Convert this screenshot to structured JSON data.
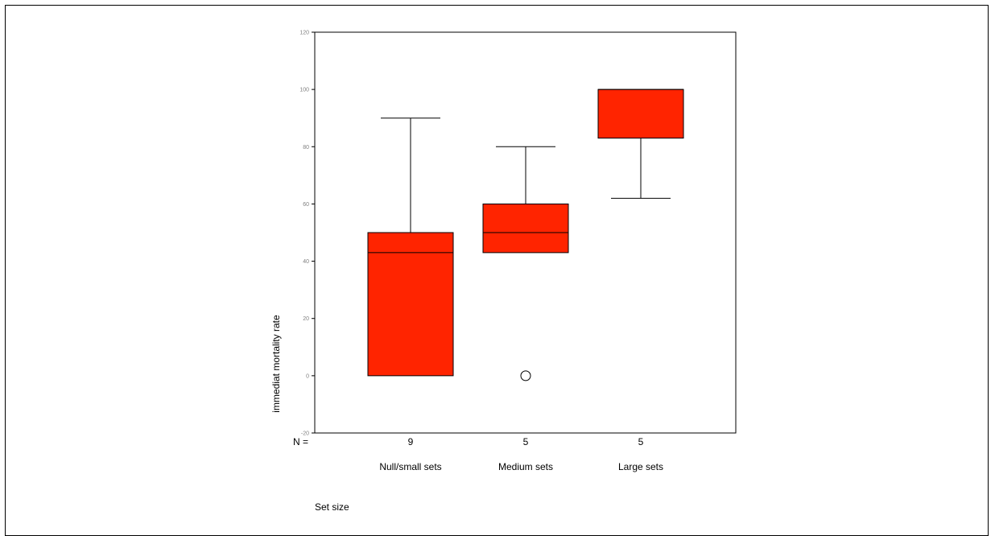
{
  "chart_data": {
    "type": "boxplot",
    "title": "",
    "xlabel": "Set size",
    "ylabel": "immediat mortality rate",
    "ylim": [
      -20,
      120
    ],
    "yticks": [
      -20,
      0,
      20,
      40,
      60,
      80,
      100,
      120
    ],
    "ytick_labels": [
      "-20",
      "0",
      "20",
      "40",
      "60",
      "80",
      "100",
      "120"
    ],
    "n_label": "N =",
    "categories": [
      "Null/small sets",
      "Medium sets",
      "Large sets"
    ],
    "n": [
      "9",
      "5",
      "5"
    ],
    "boxes": [
      {
        "category": "Null/small sets",
        "whisker_low": 0,
        "q1": 0,
        "median": 43,
        "q3": 50,
        "whisker_high": 90,
        "outliers": []
      },
      {
        "category": "Medium sets",
        "whisker_low": 43,
        "q1": 43,
        "median": 50,
        "q3": 60,
        "whisker_high": 80,
        "outliers": [
          0
        ]
      },
      {
        "category": "Large sets",
        "whisker_low": 62,
        "q1": 83,
        "median": 100,
        "q3": 100,
        "whisker_high": 100,
        "outliers": []
      }
    ],
    "box_color": "#FF2400",
    "line_color": "#000000",
    "grid": false
  }
}
